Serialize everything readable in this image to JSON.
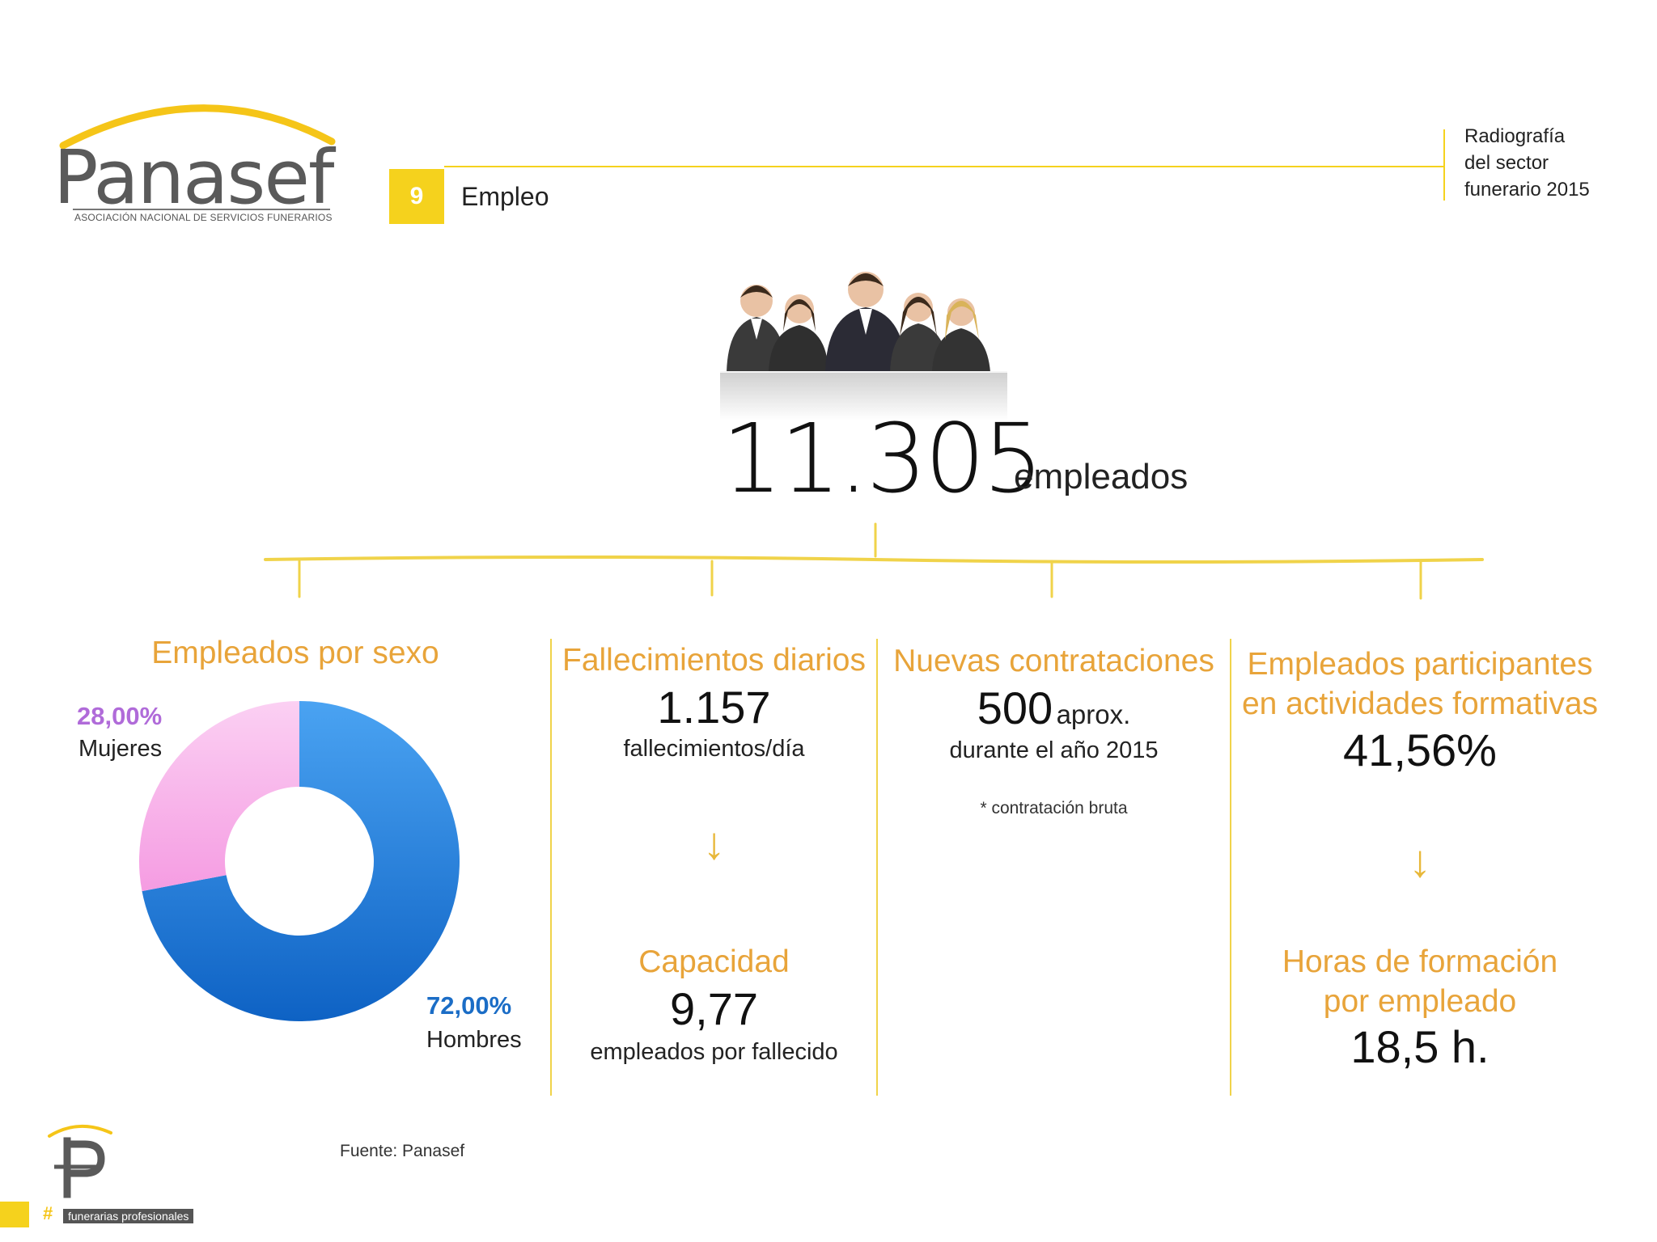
{
  "header": {
    "logo_word": "Panasef",
    "logo_sub": "ASOCIACIÓN NACIONAL DE SERVICIOS FUNERARIOS",
    "section_number": "9",
    "section_title": "Empleo",
    "report_line1": "Radiografía",
    "report_line2": "del sector",
    "report_line3": "funerario 2015"
  },
  "headline": {
    "value": "11.305",
    "unit": "empleados"
  },
  "columns": {
    "sexo": {
      "title": "Empleados por sexo",
      "mujeres_pct": "28,00%",
      "mujeres_label": "Mujeres",
      "hombres_pct": "72,00%",
      "hombres_label": "Hombres"
    },
    "fallecimientos": {
      "title": "Fallecimientos diarios",
      "value": "1.157",
      "sub": "fallecimientos/día",
      "title2": "Capacidad",
      "value2": "9,77",
      "sub2": "empleados por fallecido"
    },
    "contrataciones": {
      "title": "Nuevas contrataciones",
      "value": "500",
      "value_suffix": "aprox.",
      "sub": "durante el año 2015",
      "note": "* contratación bruta"
    },
    "formacion": {
      "title_line1": "Empleados participantes",
      "title_line2": "en actividades formativas",
      "value": "41,56%",
      "title2_line1": "Horas de formación",
      "title2_line2": "por empleado",
      "value2": "18,5 h."
    }
  },
  "footer": {
    "source": "Fuente: Panasef",
    "hashtag": "#",
    "tag_text": "funerarias profesionales"
  },
  "colors": {
    "accent_yellow": "#f5d21d",
    "title_orange": "#e8a43a",
    "mujeres": "#f7a8e6",
    "hombres": "#2a7fdc"
  },
  "chart_data": {
    "type": "pie",
    "title": "Empleados por sexo",
    "categories": [
      "Mujeres",
      "Hombres"
    ],
    "values": [
      28.0,
      72.0
    ],
    "colors": [
      "#f7a8e6",
      "#2a7fdc"
    ]
  }
}
